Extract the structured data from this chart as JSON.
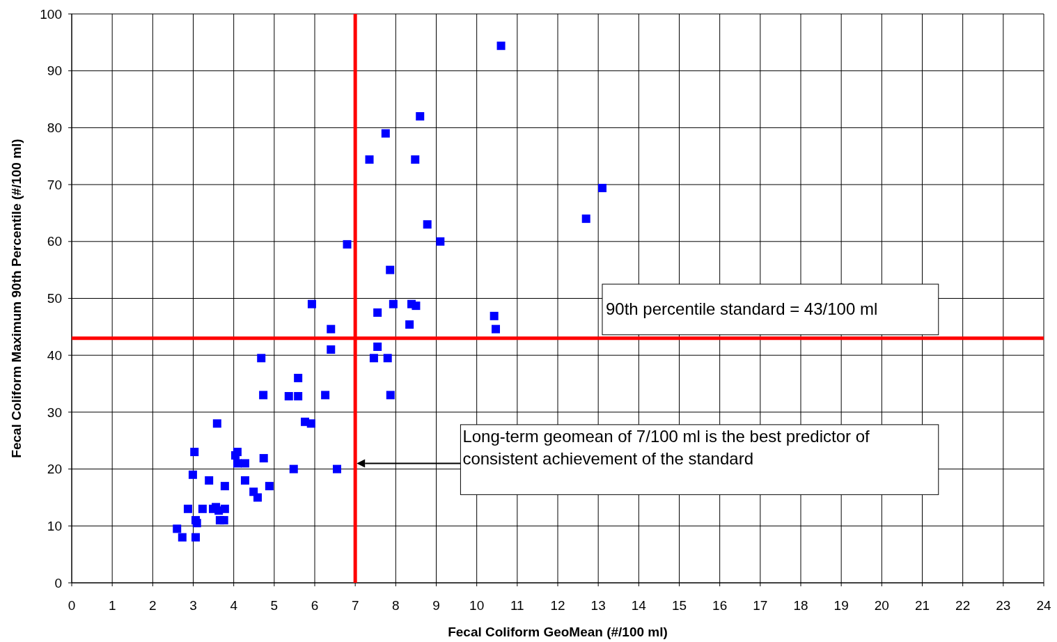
{
  "chart_data": {
    "type": "scatter",
    "xlabel": "Fecal Coliform GeoMean (#/100 ml)",
    "ylabel": "Fecal Coliform Maximum 90th Percentile (#/100 ml)",
    "x": [
      10.6,
      8.6,
      7.75,
      7.35,
      8.48,
      13.1,
      12.7,
      8.78,
      9.1,
      6.8,
      7.86,
      5.93,
      7.94,
      8.39,
      8.5,
      7.55,
      10.43,
      8.34,
      10.47,
      6.4,
      6.4,
      7.55,
      7.46,
      7.8,
      4.68,
      5.59,
      4.73,
      5.36,
      5.59,
      6.26,
      7.87,
      5.76,
      5.91,
      3.59,
      3.03,
      4.09,
      4.04,
      4.09,
      4.28,
      4.74,
      5.48,
      6.55,
      2.99,
      3.39,
      4.28,
      3.78,
      4.88,
      4.49,
      4.59,
      2.87,
      3.23,
      3.49,
      3.56,
      3.63,
      3.78,
      3.06,
      3.09,
      3.66,
      3.76,
      2.6,
      2.73,
      3.06
    ],
    "series": [
      {
        "color": "#0000ff",
        "values": [
          94.4,
          82,
          79,
          74.4,
          74.4,
          69.4,
          64,
          63,
          60,
          59.5,
          55,
          49,
          49,
          49,
          48.7,
          47.5,
          46.9,
          45.4,
          44.6,
          44.6,
          41,
          41.5,
          39.5,
          39.5,
          39.5,
          36,
          33,
          32.8,
          32.8,
          33,
          33,
          28.3,
          28,
          28,
          23,
          23,
          22.4,
          21,
          21,
          21.9,
          20,
          20,
          19,
          18,
          18,
          17,
          17,
          16,
          15,
          13,
          13,
          13,
          13.3,
          12.7,
          13,
          11,
          10.5,
          11,
          11,
          9.5,
          8,
          8
        ]
      }
    ],
    "xlim": [
      0,
      24
    ],
    "xticks": [
      0,
      1,
      2,
      3,
      4,
      5,
      6,
      7,
      8,
      9,
      10,
      11,
      12,
      13,
      14,
      15,
      16,
      17,
      18,
      19,
      20,
      21,
      22,
      23,
      24
    ],
    "ylim": [
      0,
      100
    ],
    "yticks": [
      0,
      10,
      20,
      30,
      40,
      50,
      60,
      70,
      80,
      90,
      100
    ],
    "grid": true,
    "marker": "square",
    "ref_lines": [
      {
        "axis": "y",
        "value": 43,
        "label": "90th percentile standard = 43/100 ml",
        "color": "#ff0000"
      },
      {
        "axis": "x",
        "value": 7,
        "color": "#ff0000"
      }
    ],
    "annotations": [
      "Long-term geomean of 7/100 ml is the best predictor of consistent achievement of the standard"
    ]
  }
}
